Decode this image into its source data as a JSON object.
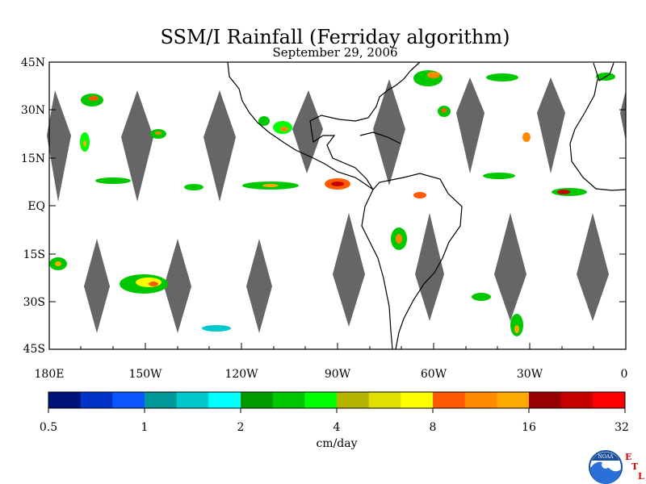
{
  "title": "SSM/I Rainfall (Ferriday algorithm)",
  "subtitle": "September 29, 2006",
  "lat_labels": [
    "45N",
    "30N",
    "15N",
    "EQ",
    "15S",
    "30S",
    "45S"
  ],
  "lon_labels": [
    "180E",
    "150W",
    "120W",
    "90W",
    "60W",
    "30W",
    "0"
  ],
  "colorbar": {
    "colors": [
      "#00127a",
      "#0033c8",
      "#0a55ff",
      "#00999a",
      "#00c8cc",
      "#00ffff",
      "#009a00",
      "#00c800",
      "#00ff00",
      "#b4b400",
      "#e0e000",
      "#ffff00",
      "#ff5a00",
      "#ff8a00",
      "#ffaa00",
      "#9a0000",
      "#c80000",
      "#ff0000"
    ],
    "tick_labels": [
      "0.5",
      "1",
      "2",
      "4",
      "8",
      "16",
      "32"
    ],
    "units": "cm/day"
  },
  "logo": {
    "text": "NOAA",
    "side_letters": [
      "E",
      "T",
      "L"
    ]
  }
}
